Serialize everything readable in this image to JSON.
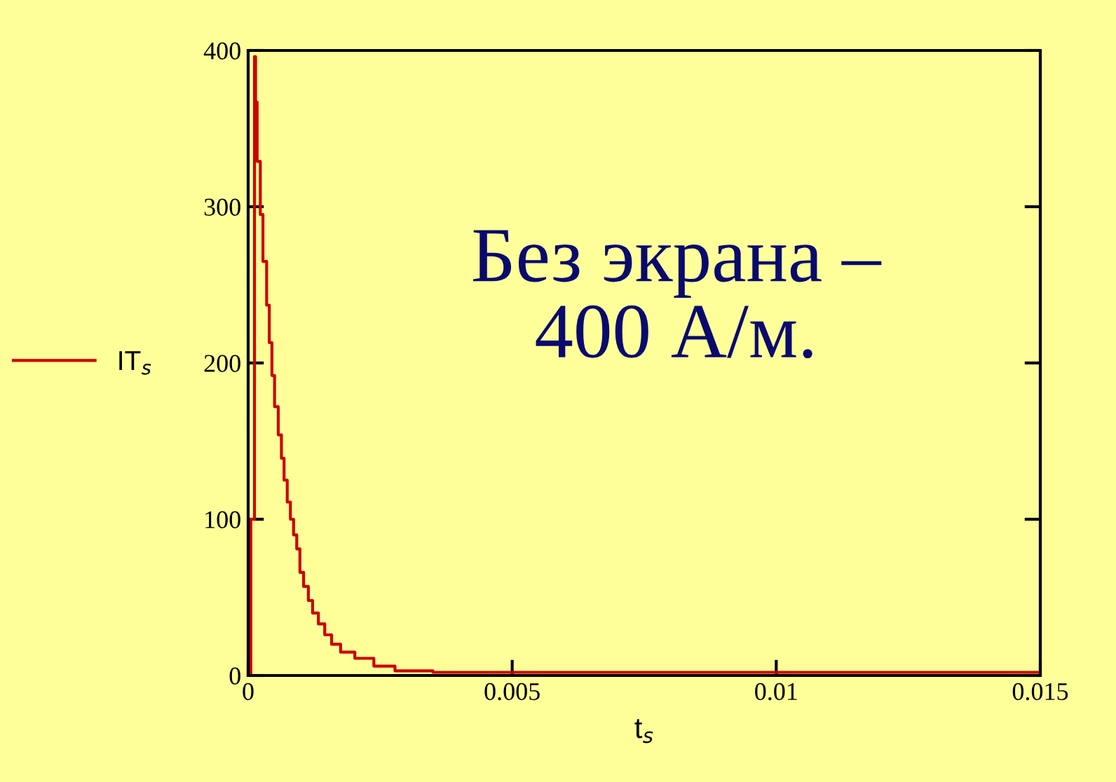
{
  "chart_data": {
    "type": "step",
    "xlabel": "t$_{s}$",
    "x": [
      0,
      5e-05,
      0.00012,
      0.00014,
      0.00017,
      0.00023,
      0.00028,
      0.00035,
      0.0004,
      0.00045,
      0.0005,
      0.00057,
      0.00063,
      0.00068,
      0.00074,
      0.0008,
      0.00086,
      0.00092,
      0.00098,
      0.00105,
      0.00114,
      0.00122,
      0.00133,
      0.00145,
      0.00158,
      0.00175,
      0.00202,
      0.00238,
      0.00278,
      0.0035,
      0.015
    ],
    "series": [
      {
        "name": "IT$_{s}$",
        "color": "#cc0000",
        "values": [
          0,
          100,
          396,
          367,
          329,
          295,
          265,
          237,
          213,
          192,
          172,
          154,
          139,
          125,
          111,
          100,
          90,
          81,
          66,
          57,
          48,
          40,
          33,
          26,
          20,
          15,
          11,
          6,
          3,
          2,
          2
        ]
      }
    ],
    "xlim": [
      0,
      0.015
    ],
    "xticks": [
      0,
      0.005,
      0.01,
      0.015
    ],
    "ylim": [
      0,
      400
    ],
    "yticks": [
      0,
      100,
      200,
      300,
      400
    ],
    "grid": false,
    "legend": "left",
    "annotations": [
      "Без экрана –\n400 А/м."
    ]
  }
}
